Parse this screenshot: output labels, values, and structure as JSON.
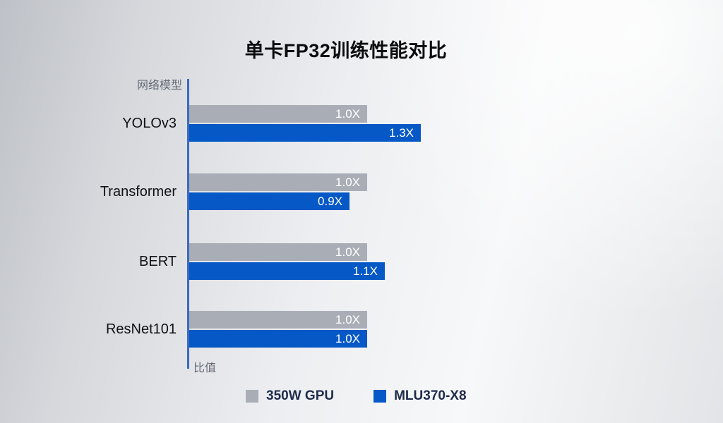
{
  "chart_data": {
    "type": "bar",
    "orientation": "horizontal",
    "title": "单卡FP32训练性能对比",
    "y_axis_label": "网络模型",
    "x_axis_label": "比值",
    "categories": [
      "YOLOv3",
      "Transformer",
      "BERT",
      "ResNet101"
    ],
    "series": [
      {
        "name": "350W GPU",
        "color": "#a9aeb6",
        "values": [
          1.0,
          1.0,
          1.0,
          1.0
        ],
        "value_labels": [
          "1.0X",
          "1.0X",
          "1.0X",
          "1.0X"
        ]
      },
      {
        "name": "MLU370-X8",
        "color": "#0558c6",
        "values": [
          1.3,
          0.9,
          1.1,
          1.0
        ],
        "value_labels": [
          "1.3X",
          "0.9X",
          "1.1X",
          "1.0X"
        ]
      }
    ],
    "xlim": [
      0,
      1.5
    ],
    "grid": false,
    "legend_position": "bottom",
    "axis_color": "#3c69c2"
  },
  "legend": {
    "items": [
      {
        "label": "350W GPU",
        "color": "#a9aeb6"
      },
      {
        "label": "MLU370-X8",
        "color": "#0558c6"
      }
    ]
  }
}
